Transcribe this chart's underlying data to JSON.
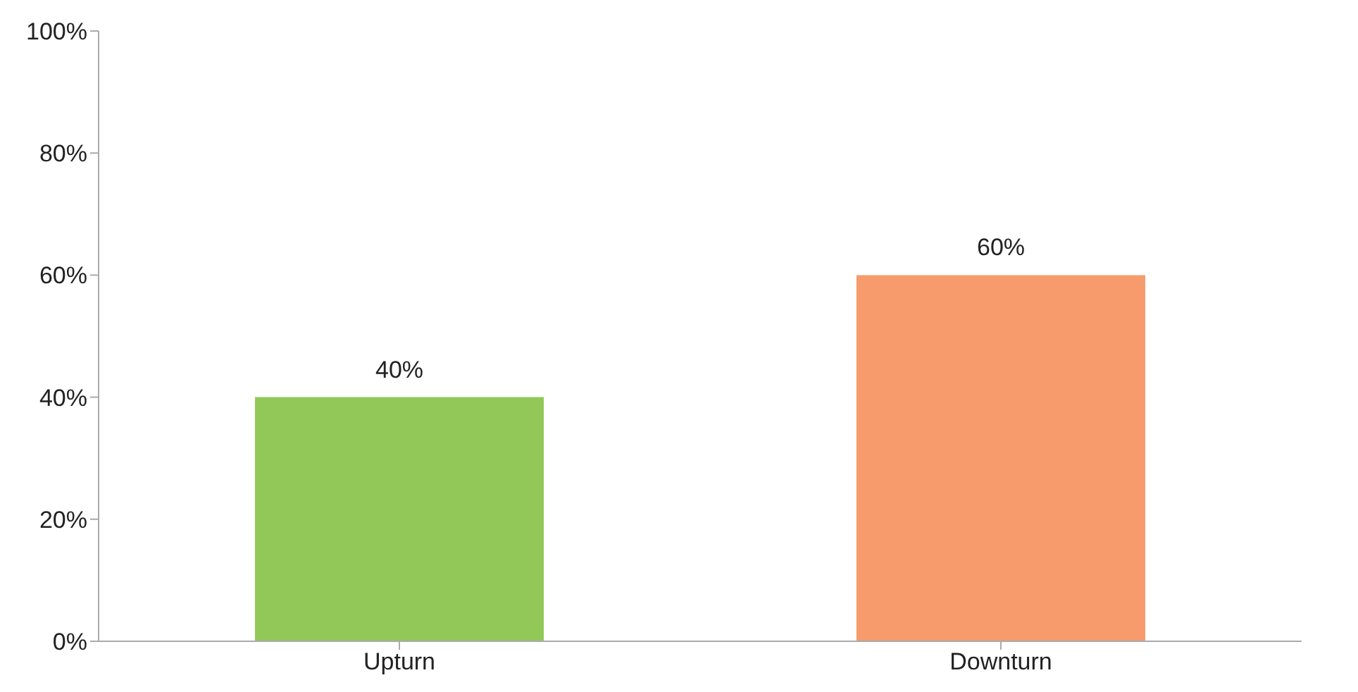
{
  "chart_data": {
    "type": "bar",
    "categories": [
      "Upturn",
      "Downturn"
    ],
    "values": [
      40,
      60
    ],
    "colors": [
      "#92c857",
      "#f79b6c"
    ],
    "value_labels": [
      "40%",
      "60%"
    ],
    "ylim": [
      0,
      100
    ],
    "yticks": [
      {
        "value": 0,
        "label": "0%"
      },
      {
        "value": 20,
        "label": "20%"
      },
      {
        "value": 40,
        "label": "40%"
      },
      {
        "value": 60,
        "label": "60%"
      },
      {
        "value": 80,
        "label": "80%"
      },
      {
        "value": 100,
        "label": "100%"
      }
    ],
    "grid": false,
    "legend": false
  }
}
